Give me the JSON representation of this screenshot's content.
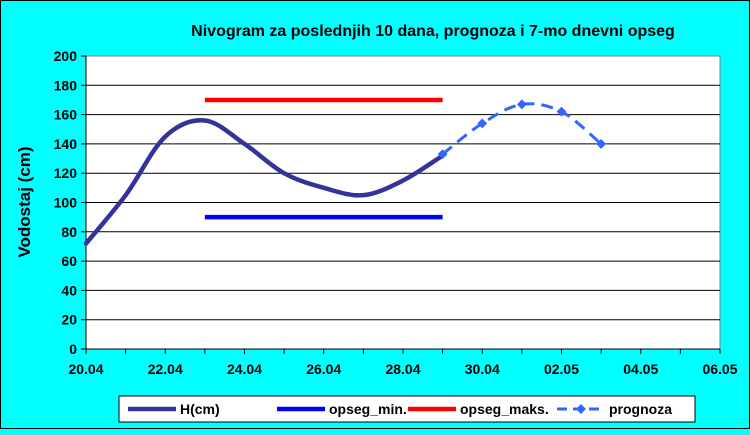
{
  "chart_data": {
    "type": "line",
    "title": "Nivogram za poslednjih 10 dana, prognoza i 7-mo dnevni opseg",
    "xlabel": "",
    "ylabel": "Vodostaj (cm)",
    "ylim": [
      0,
      200
    ],
    "ytick_step": 20,
    "y_ticks": [
      "0",
      "20",
      "40",
      "60",
      "80",
      "100",
      "120",
      "140",
      "160",
      "180",
      "200"
    ],
    "x_ticks": [
      "20.04",
      "22.04",
      "24.04",
      "26.04",
      "28.04",
      "30.04",
      "02.05",
      "04.05",
      "06.05"
    ],
    "x_range": [
      "2024-04-20",
      "2024-05-06"
    ],
    "grid": true,
    "legend_position": "bottom",
    "series": [
      {
        "name": "H(cm)",
        "color": "#333399",
        "style": "solid-smooth",
        "points": [
          {
            "x": "20.04",
            "y": 72
          },
          {
            "x": "21.04",
            "y": 105
          },
          {
            "x": "22.04",
            "y": 145
          },
          {
            "x": "23.04",
            "y": 156
          },
          {
            "x": "24.04",
            "y": 140
          },
          {
            "x": "25.04",
            "y": 120
          },
          {
            "x": "26.04",
            "y": 110
          },
          {
            "x": "27.04",
            "y": 105
          },
          {
            "x": "28.04",
            "y": 115
          },
          {
            "x": "29.04",
            "y": 132
          }
        ]
      },
      {
        "name": "opseg_min.",
        "color": "#0000ff",
        "style": "solid",
        "points": [
          {
            "x": "23.04",
            "y": 90
          },
          {
            "x": "29.04",
            "y": 90
          }
        ]
      },
      {
        "name": "opseg_maks.",
        "color": "#ff0000",
        "style": "solid",
        "points": [
          {
            "x": "23.04",
            "y": 170
          },
          {
            "x": "29.04",
            "y": 170
          }
        ]
      },
      {
        "name": "prognoza",
        "color": "#3366ff",
        "style": "dashed-markers",
        "points": [
          {
            "x": "29.04",
            "y": 133
          },
          {
            "x": "30.04",
            "y": 154
          },
          {
            "x": "01.05",
            "y": 167
          },
          {
            "x": "02.05",
            "y": 162
          },
          {
            "x": "03.05",
            "y": 140
          }
        ]
      }
    ],
    "colors": {
      "background": "#00ffff",
      "plot_area": "#ffffff"
    }
  }
}
